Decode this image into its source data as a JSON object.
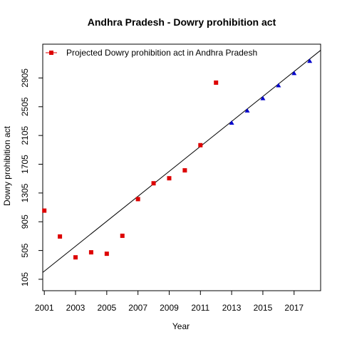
{
  "chart_data": {
    "type": "scatter",
    "title": "Andhra Pradesh  -  Dowry prohibition act",
    "xlabel": "Year",
    "ylabel": "Dowry prohibition act",
    "xlim": [
      2000.9,
      2018.7
    ],
    "ylim": [
      -54,
      3375
    ],
    "x_ticks": [
      2001,
      2003,
      2005,
      2007,
      2009,
      2011,
      2013,
      2015,
      2017
    ],
    "y_ticks": [
      105,
      505,
      905,
      1305,
      1705,
      2105,
      2505,
      2905
    ],
    "grid": false,
    "legend": {
      "position": "top-left",
      "entries": [
        "Projected  Dowry prohibition act  in  Andhra Pradesh"
      ]
    },
    "series": [
      {
        "name": "Dowry prohibition act",
        "marker": "square",
        "color": "#DD0000",
        "x": [
          2001,
          2002,
          2003,
          2004,
          2005,
          2006,
          2007,
          2008,
          2009,
          2010,
          2011,
          2012
        ],
        "y": [
          1060,
          700,
          410,
          480,
          460,
          710,
          1220,
          1440,
          1510,
          1620,
          1970,
          2840
        ]
      },
      {
        "name": "Projected  Dowry prohibition act  in  Andhra Pradesh",
        "marker": "triangle",
        "color": "#0000CC",
        "x": [
          2013,
          2014,
          2015,
          2016,
          2017,
          2018
        ],
        "y": [
          2280,
          2450,
          2620,
          2800,
          2970,
          3140
        ]
      }
    ],
    "trend_line": {
      "x": [
        2000.9,
        2018.7
      ],
      "y": [
        200,
        3290
      ]
    },
    "colors": {
      "observed": "#DD0000",
      "projected": "#0000CC",
      "axis": "#000000"
    }
  }
}
